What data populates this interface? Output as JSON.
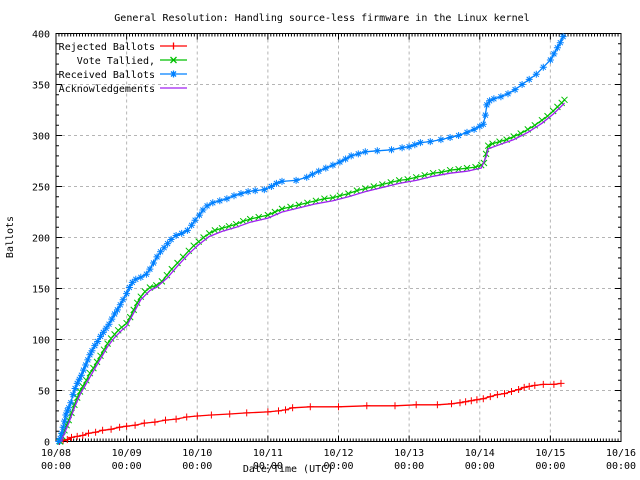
{
  "chart_data": {
    "type": "line",
    "title": "General Resolution: Handling source-less firmware in the Linux kernel",
    "xlabel": "Date/Time (UTC)",
    "ylabel": "Ballots",
    "x_unit": "days since 10/08 00:00 UTC",
    "xlim": [
      0,
      8
    ],
    "ylim": [
      0,
      400
    ],
    "grid": true,
    "legend_position": "top-left",
    "background": "#ffffff",
    "border_color": "#000000",
    "grid_color": "#b5b5b5",
    "x_ticks": [
      {
        "day": 0,
        "date": "10/08",
        "time": "00:00"
      },
      {
        "day": 1,
        "date": "10/09",
        "time": "00:00"
      },
      {
        "day": 2,
        "date": "10/10",
        "time": "00:00"
      },
      {
        "day": 3,
        "date": "10/11",
        "time": "00:00"
      },
      {
        "day": 4,
        "date": "10/12",
        "time": "00:00"
      },
      {
        "day": 5,
        "date": "10/13",
        "time": "00:00"
      },
      {
        "day": 6,
        "date": "10/14",
        "time": "00:00"
      },
      {
        "day": 7,
        "date": "10/15",
        "time": "00:00"
      },
      {
        "day": 8,
        "date": "10/16",
        "time": "00:00"
      }
    ],
    "y_ticks": [
      0,
      50,
      100,
      150,
      200,
      250,
      300,
      350,
      400
    ],
    "y_minor_step": 10,
    "x_minor_per_day": 24,
    "series": [
      {
        "name": "Rejected Ballots",
        "color": "#ff0000",
        "marker": "plus",
        "points": [
          [
            0.05,
            0
          ],
          [
            0.1,
            1
          ],
          [
            0.16,
            2
          ],
          [
            0.22,
            4
          ],
          [
            0.3,
            5
          ],
          [
            0.38,
            6
          ],
          [
            0.46,
            8
          ],
          [
            0.56,
            9
          ],
          [
            0.66,
            11
          ],
          [
            0.78,
            12
          ],
          [
            0.9,
            14
          ],
          [
            1.0,
            15
          ],
          [
            1.12,
            16
          ],
          [
            1.25,
            18
          ],
          [
            1.4,
            19
          ],
          [
            1.55,
            21
          ],
          [
            1.7,
            22
          ],
          [
            1.85,
            24
          ],
          [
            2.0,
            25
          ],
          [
            2.2,
            26
          ],
          [
            2.46,
            27
          ],
          [
            2.7,
            28
          ],
          [
            3.0,
            29
          ],
          [
            3.15,
            30
          ],
          [
            3.25,
            31
          ],
          [
            3.35,
            33
          ],
          [
            3.6,
            34
          ],
          [
            4.0,
            34
          ],
          [
            4.4,
            35
          ],
          [
            4.8,
            35
          ],
          [
            5.1,
            36
          ],
          [
            5.4,
            36
          ],
          [
            5.6,
            37
          ],
          [
            5.72,
            38
          ],
          [
            5.8,
            39
          ],
          [
            5.88,
            40
          ],
          [
            5.96,
            41
          ],
          [
            6.05,
            42
          ],
          [
            6.15,
            44
          ],
          [
            6.25,
            46
          ],
          [
            6.35,
            47
          ],
          [
            6.45,
            49
          ],
          [
            6.55,
            51
          ],
          [
            6.63,
            53
          ],
          [
            6.7,
            54
          ],
          [
            6.78,
            55
          ],
          [
            6.9,
            56
          ],
          [
            7.05,
            56
          ],
          [
            7.15,
            57
          ]
        ]
      },
      {
        "name": "Vote Tallied,",
        "color": "#00c000",
        "marker": "cross",
        "points": [
          [
            0.06,
            0
          ],
          [
            0.09,
            5
          ],
          [
            0.12,
            11
          ],
          [
            0.15,
            16
          ],
          [
            0.18,
            21
          ],
          [
            0.22,
            28
          ],
          [
            0.26,
            36
          ],
          [
            0.3,
            43
          ],
          [
            0.34,
            49
          ],
          [
            0.38,
            54
          ],
          [
            0.43,
            60
          ],
          [
            0.48,
            67
          ],
          [
            0.53,
            72
          ],
          [
            0.58,
            78
          ],
          [
            0.63,
            84
          ],
          [
            0.68,
            90
          ],
          [
            0.73,
            96
          ],
          [
            0.78,
            101
          ],
          [
            0.83,
            105
          ],
          [
            0.88,
            109
          ],
          [
            0.93,
            112
          ],
          [
            1.0,
            116
          ],
          [
            1.05,
            122
          ],
          [
            1.1,
            129
          ],
          [
            1.15,
            136
          ],
          [
            1.2,
            142
          ],
          [
            1.26,
            147
          ],
          [
            1.33,
            151
          ],
          [
            1.42,
            153
          ],
          [
            1.5,
            157
          ],
          [
            1.57,
            163
          ],
          [
            1.64,
            169
          ],
          [
            1.72,
            175
          ],
          [
            1.8,
            181
          ],
          [
            1.88,
            187
          ],
          [
            1.95,
            192
          ],
          [
            2.02,
            196
          ],
          [
            2.09,
            200
          ],
          [
            2.17,
            204
          ],
          [
            2.25,
            207
          ],
          [
            2.35,
            209
          ],
          [
            2.45,
            211
          ],
          [
            2.55,
            213
          ],
          [
            2.65,
            216
          ],
          [
            2.75,
            218
          ],
          [
            2.87,
            220
          ],
          [
            3.0,
            222
          ],
          [
            3.1,
            225
          ],
          [
            3.2,
            228
          ],
          [
            3.32,
            230
          ],
          [
            3.44,
            232
          ],
          [
            3.56,
            234
          ],
          [
            3.68,
            236
          ],
          [
            3.8,
            238
          ],
          [
            3.92,
            239
          ],
          [
            4.02,
            241
          ],
          [
            4.14,
            243
          ],
          [
            4.26,
            246
          ],
          [
            4.38,
            248
          ],
          [
            4.5,
            250
          ],
          [
            4.62,
            252
          ],
          [
            4.74,
            254
          ],
          [
            4.86,
            256
          ],
          [
            4.98,
            257
          ],
          [
            5.1,
            259
          ],
          [
            5.22,
            261
          ],
          [
            5.34,
            263
          ],
          [
            5.46,
            264
          ],
          [
            5.58,
            266
          ],
          [
            5.7,
            267
          ],
          [
            5.82,
            268
          ],
          [
            5.94,
            269
          ],
          [
            6.02,
            271
          ],
          [
            6.06,
            273
          ],
          [
            6.09,
            282
          ],
          [
            6.12,
            290
          ],
          [
            6.18,
            292
          ],
          [
            6.28,
            294
          ],
          [
            6.38,
            296
          ],
          [
            6.48,
            299
          ],
          [
            6.58,
            302
          ],
          [
            6.68,
            306
          ],
          [
            6.78,
            310
          ],
          [
            6.88,
            315
          ],
          [
            6.96,
            319
          ],
          [
            7.04,
            324
          ],
          [
            7.1,
            328
          ],
          [
            7.16,
            332
          ],
          [
            7.2,
            335
          ]
        ]
      },
      {
        "name": "Received Ballots",
        "color": "#0080ff",
        "marker": "asterisk",
        "points": [
          [
            0.04,
            0
          ],
          [
            0.06,
            3
          ],
          [
            0.08,
            8
          ],
          [
            0.1,
            14
          ],
          [
            0.12,
            20
          ],
          [
            0.14,
            26
          ],
          [
            0.16,
            30
          ],
          [
            0.18,
            33
          ],
          [
            0.21,
            38
          ],
          [
            0.24,
            46
          ],
          [
            0.27,
            52
          ],
          [
            0.3,
            57
          ],
          [
            0.33,
            61
          ],
          [
            0.36,
            65
          ],
          [
            0.39,
            70
          ],
          [
            0.42,
            75
          ],
          [
            0.45,
            80
          ],
          [
            0.48,
            85
          ],
          [
            0.51,
            89
          ],
          [
            0.55,
            94
          ],
          [
            0.59,
            98
          ],
          [
            0.63,
            103
          ],
          [
            0.67,
            107
          ],
          [
            0.71,
            111
          ],
          [
            0.75,
            115
          ],
          [
            0.79,
            120
          ],
          [
            0.83,
            125
          ],
          [
            0.87,
            129
          ],
          [
            0.91,
            134
          ],
          [
            0.95,
            139
          ],
          [
            1.0,
            145
          ],
          [
            1.04,
            151
          ],
          [
            1.08,
            156
          ],
          [
            1.13,
            159
          ],
          [
            1.2,
            161
          ],
          [
            1.28,
            164
          ],
          [
            1.33,
            169
          ],
          [
            1.38,
            175
          ],
          [
            1.43,
            181
          ],
          [
            1.48,
            186
          ],
          [
            1.53,
            190
          ],
          [
            1.58,
            194
          ],
          [
            1.63,
            198
          ],
          [
            1.7,
            202
          ],
          [
            1.78,
            204
          ],
          [
            1.86,
            207
          ],
          [
            1.92,
            212
          ],
          [
            1.97,
            217
          ],
          [
            2.03,
            222
          ],
          [
            2.08,
            227
          ],
          [
            2.14,
            231
          ],
          [
            2.22,
            234
          ],
          [
            2.32,
            236
          ],
          [
            2.42,
            238
          ],
          [
            2.52,
            241
          ],
          [
            2.62,
            243
          ],
          [
            2.72,
            245
          ],
          [
            2.82,
            246
          ],
          [
            2.95,
            247
          ],
          [
            3.05,
            250
          ],
          [
            3.12,
            253
          ],
          [
            3.2,
            255
          ],
          [
            3.4,
            256
          ],
          [
            3.55,
            259
          ],
          [
            3.63,
            262
          ],
          [
            3.72,
            265
          ],
          [
            3.82,
            268
          ],
          [
            3.92,
            271
          ],
          [
            4.02,
            274
          ],
          [
            4.1,
            277
          ],
          [
            4.18,
            280
          ],
          [
            4.28,
            282
          ],
          [
            4.38,
            284
          ],
          [
            4.55,
            285
          ],
          [
            4.75,
            286
          ],
          [
            4.9,
            288
          ],
          [
            5.0,
            289
          ],
          [
            5.08,
            291
          ],
          [
            5.16,
            293
          ],
          [
            5.3,
            294
          ],
          [
            5.45,
            296
          ],
          [
            5.58,
            298
          ],
          [
            5.7,
            300
          ],
          [
            5.82,
            303
          ],
          [
            5.92,
            306
          ],
          [
            6.0,
            309
          ],
          [
            6.05,
            311
          ],
          [
            6.08,
            320
          ],
          [
            6.1,
            330
          ],
          [
            6.14,
            334
          ],
          [
            6.2,
            336
          ],
          [
            6.3,
            338
          ],
          [
            6.4,
            341
          ],
          [
            6.5,
            345
          ],
          [
            6.6,
            350
          ],
          [
            6.7,
            355
          ],
          [
            6.8,
            360
          ],
          [
            6.9,
            367
          ],
          [
            7.0,
            374
          ],
          [
            7.05,
            380
          ],
          [
            7.1,
            386
          ],
          [
            7.14,
            391
          ],
          [
            7.18,
            397
          ]
        ]
      },
      {
        "name": "Acknowledgements",
        "color": "#a020f0",
        "marker": "none",
        "points": [
          [
            0.07,
            0
          ],
          [
            0.12,
            8
          ],
          [
            0.18,
            18
          ],
          [
            0.26,
            33
          ],
          [
            0.34,
            46
          ],
          [
            0.43,
            57
          ],
          [
            0.53,
            69
          ],
          [
            0.63,
            81
          ],
          [
            0.73,
            93
          ],
          [
            0.83,
            102
          ],
          [
            0.93,
            109
          ],
          [
            1.0,
            113
          ],
          [
            1.1,
            126
          ],
          [
            1.2,
            139
          ],
          [
            1.33,
            148
          ],
          [
            1.42,
            151
          ],
          [
            1.57,
            160
          ],
          [
            1.72,
            172
          ],
          [
            1.88,
            184
          ],
          [
            2.02,
            193
          ],
          [
            2.17,
            201
          ],
          [
            2.35,
            206
          ],
          [
            2.55,
            210
          ],
          [
            2.75,
            215
          ],
          [
            3.0,
            219
          ],
          [
            3.2,
            225
          ],
          [
            3.44,
            229
          ],
          [
            3.68,
            233
          ],
          [
            3.92,
            236
          ],
          [
            4.14,
            240
          ],
          [
            4.38,
            245
          ],
          [
            4.62,
            249
          ],
          [
            4.86,
            253
          ],
          [
            5.1,
            256
          ],
          [
            5.34,
            260
          ],
          [
            5.58,
            263
          ],
          [
            5.82,
            265
          ],
          [
            6.02,
            268
          ],
          [
            6.09,
            279
          ],
          [
            6.12,
            287
          ],
          [
            6.28,
            291
          ],
          [
            6.48,
            296
          ],
          [
            6.68,
            303
          ],
          [
            6.88,
            312
          ],
          [
            7.04,
            321
          ],
          [
            7.16,
            329
          ],
          [
            7.2,
            332
          ]
        ]
      }
    ]
  }
}
